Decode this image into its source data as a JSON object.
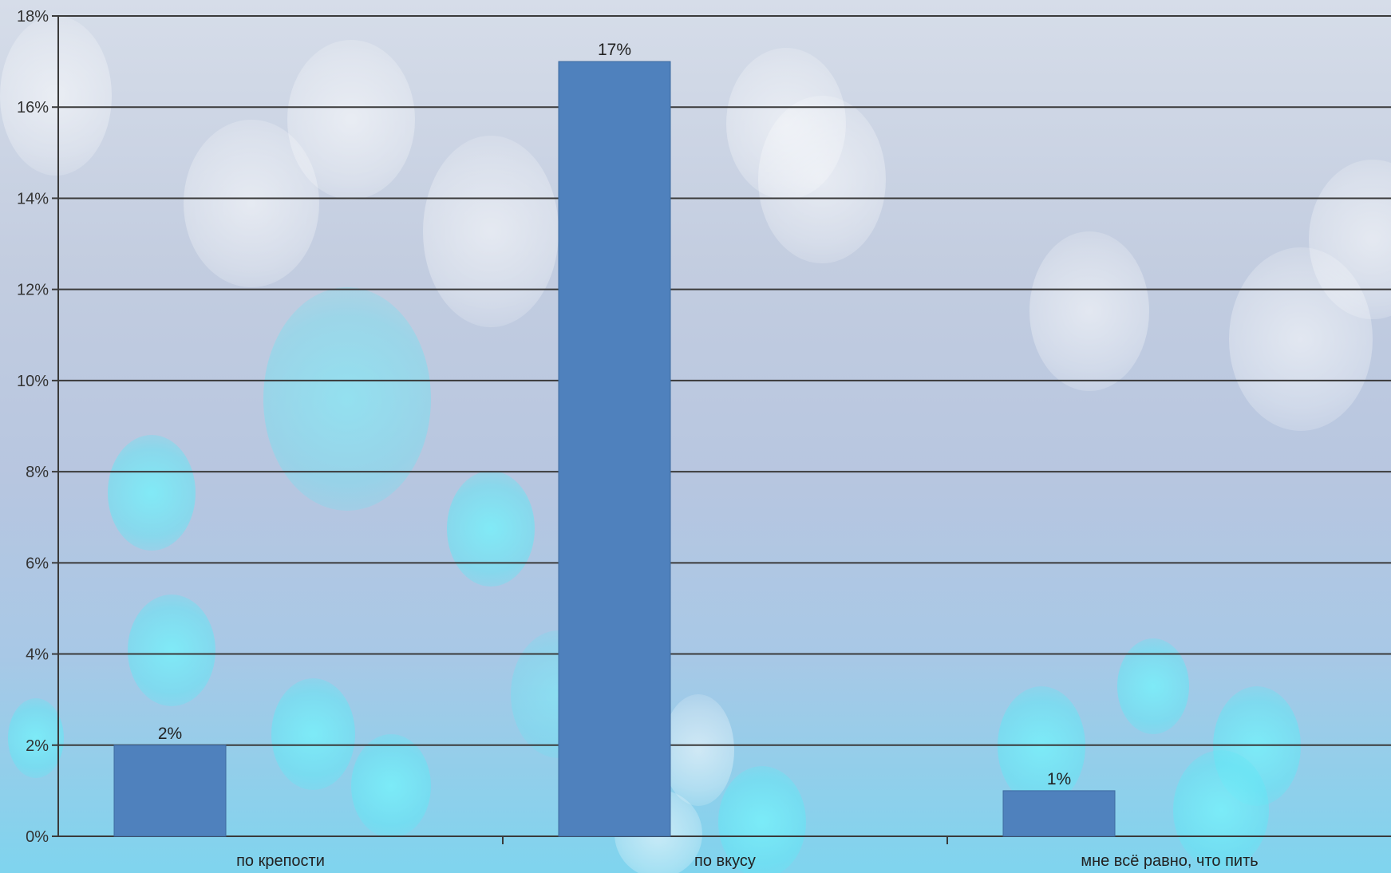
{
  "chart_data": {
    "type": "bar",
    "categories": [
      "по крепости",
      "по вкусу",
      "мне всё равно, что пить"
    ],
    "series": [
      {
        "values": [
          2,
          17,
          1
        ]
      }
    ],
    "data_labels": [
      "2%",
      "17%",
      "1%"
    ],
    "y_ticks": [
      "0%",
      "2%",
      "4%",
      "6%",
      "8%",
      "10%",
      "12%",
      "14%",
      "16%",
      "18%"
    ],
    "ylim": [
      0,
      18
    ],
    "title": "",
    "xlabel": "",
    "ylabel": "",
    "grid": true,
    "legend": "none",
    "bar_color": "#4f81bd"
  }
}
